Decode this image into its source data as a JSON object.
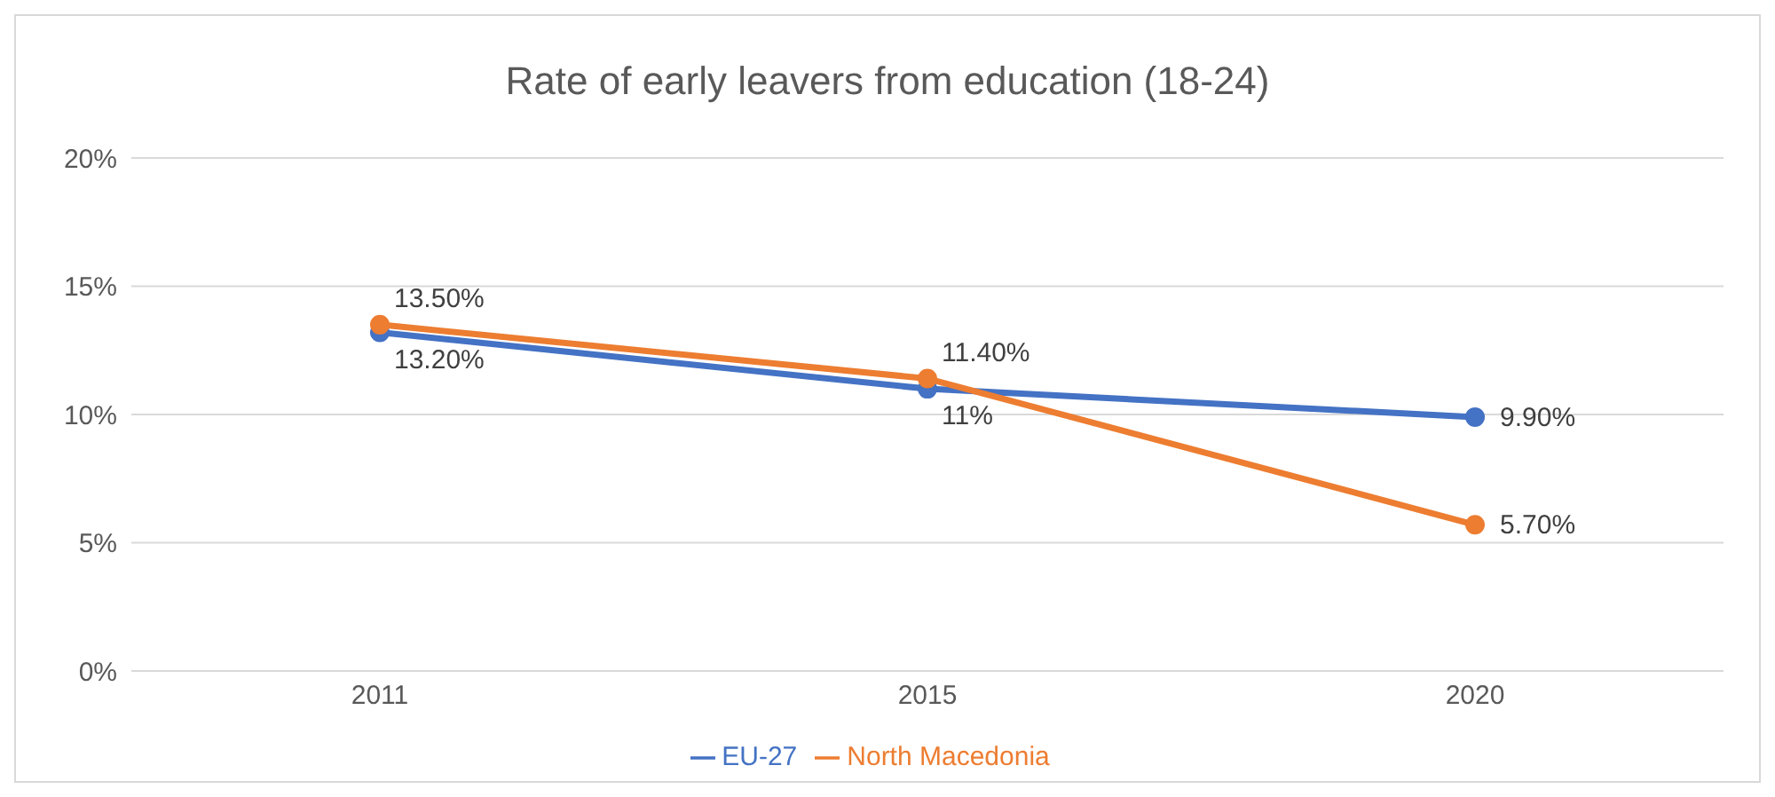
{
  "chart_data": {
    "type": "line",
    "title": "Rate of early leavers from education (18-24)",
    "categories": [
      "2011",
      "2015",
      "2020"
    ],
    "series": [
      {
        "name": "EU-27",
        "color": "#4472c4",
        "values": [
          13.2,
          11,
          9.9
        ],
        "value_labels": [
          "13.20%",
          "11%",
          "9.90%"
        ]
      },
      {
        "name": "North Macedonia",
        "color": "#ed7d31",
        "values": [
          13.5,
          11.4,
          5.7
        ],
        "value_labels": [
          "13.50%",
          "11.40%",
          "5.70%"
        ]
      }
    ],
    "ylim": [
      0,
      20
    ],
    "yticks": [
      {
        "value": 0,
        "label": "0%"
      },
      {
        "value": 5,
        "label": "5%"
      },
      {
        "value": 10,
        "label": "10%"
      },
      {
        "value": 15,
        "label": "15%"
      },
      {
        "value": 20,
        "label": "20%"
      }
    ],
    "grid": "y",
    "legend": "bottom",
    "marker": "circle",
    "line_style": "solid"
  }
}
